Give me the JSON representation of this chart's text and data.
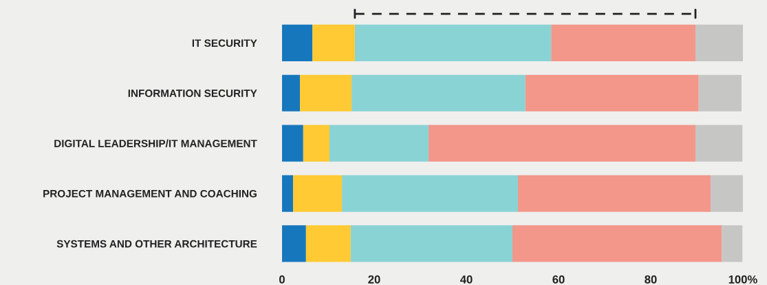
{
  "chart_data": {
    "type": "bar",
    "orientation": "horizontal",
    "stacked": true,
    "categories": [
      "IT SECURITY",
      "INFORMATION SECURITY",
      "DIGITAL LEADERSHIP/IT MANAGEMENT",
      "PROJECT MANAGEMENT AND COACHING",
      "SYSTEMS AND OTHER ARCHITECTURE"
    ],
    "series": [
      {
        "color": "#1777bd",
        "values": [
          6.6,
          3.9,
          4.6,
          2.4,
          5.2
        ]
      },
      {
        "color": "#ffca33",
        "values": [
          9.2,
          11.2,
          5.7,
          10.6,
          9.7
        ]
      },
      {
        "color": "#8ad3d5",
        "values": [
          42.6,
          37.7,
          21.5,
          38.2,
          35.1
        ]
      },
      {
        "color": "#f2978a",
        "values": [
          31.3,
          37.6,
          57.9,
          41.8,
          45.4
        ]
      },
      {
        "color": "#c6c6c4",
        "values": [
          10.3,
          9.3,
          10.2,
          7.0,
          4.5
        ]
      }
    ],
    "xlim": [
      0,
      100
    ],
    "xticks": [
      0,
      20,
      40,
      60,
      80,
      {
        "value": 100,
        "label": "100%"
      }
    ],
    "grid": false,
    "legend": false
  }
}
